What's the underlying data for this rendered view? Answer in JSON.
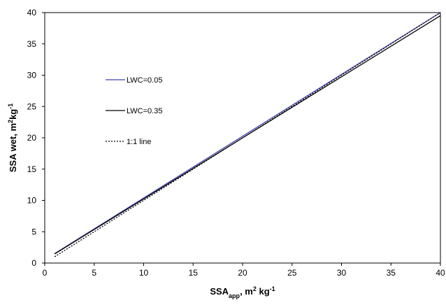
{
  "chart_data": {
    "type": "line",
    "title": "",
    "xlabel": {
      "main": "SSA",
      "sub": "app",
      "rest": ", m",
      "sup1": "2",
      "rest2": " kg",
      "sup2": "-1"
    },
    "ylabel": {
      "main": "SSA wet,  m",
      "sup1": "2",
      "rest": "kg",
      "sup2": "-1"
    },
    "xlim": [
      0,
      40
    ],
    "ylim": [
      0,
      40
    ],
    "xticks": [
      "0",
      "5",
      "10",
      "15",
      "20",
      "25",
      "30",
      "35",
      "40"
    ],
    "yticks": [
      "0",
      "5",
      "10",
      "15",
      "20",
      "25",
      "30",
      "35",
      "40"
    ],
    "grid": false,
    "legend_position": "upper-left inside",
    "series": [
      {
        "name": "LWC=0.05",
        "color": "#4040b0",
        "style": "solid",
        "x": [
          1,
          40
        ],
        "y": [
          1.5,
          40.0
        ]
      },
      {
        "name": "LWC=0.35",
        "color": "#000000",
        "style": "solid",
        "x": [
          1,
          40
        ],
        "y": [
          1.45,
          39.5
        ]
      },
      {
        "name": "1:1 line",
        "color": "#000000",
        "style": "dotted",
        "x": [
          1,
          40
        ],
        "y": [
          1,
          40
        ]
      }
    ]
  }
}
